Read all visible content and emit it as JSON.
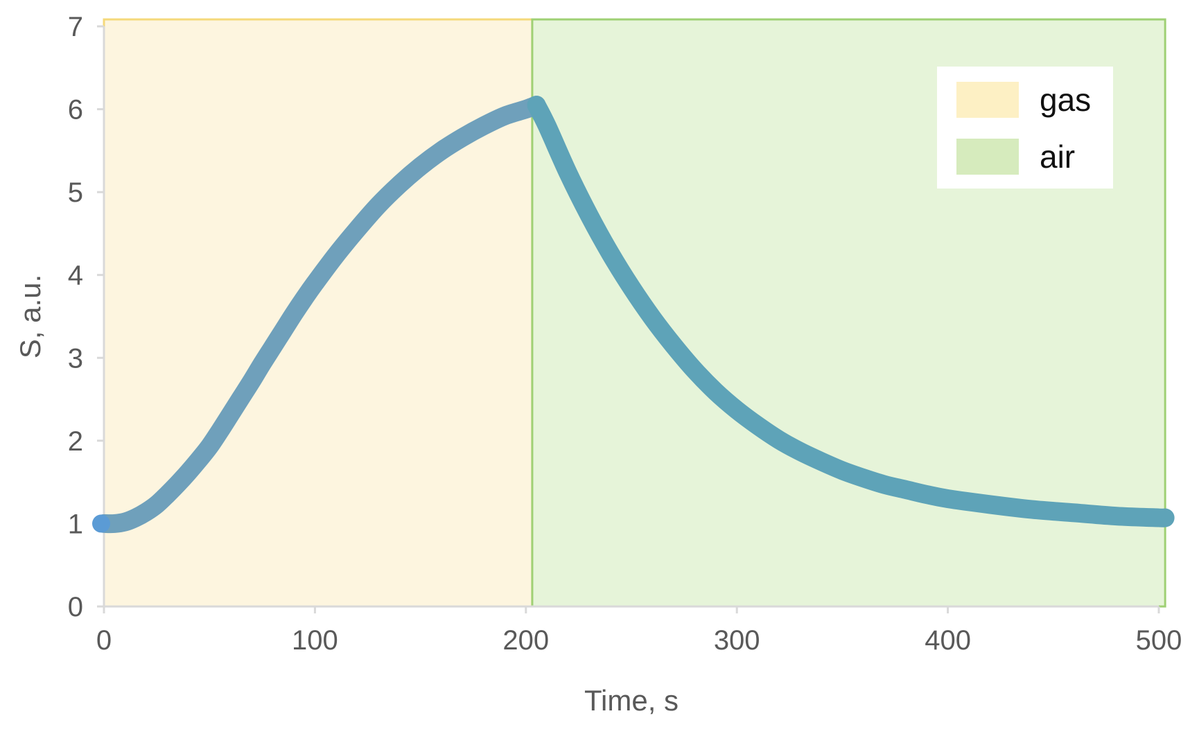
{
  "chart_data": {
    "type": "line",
    "title": "",
    "xlabel": "Time, s",
    "ylabel": "S, a.u.",
    "xlim": [
      0,
      500
    ],
    "ylim": [
      0,
      7
    ],
    "x_ticks": [
      0,
      100,
      200,
      300,
      400,
      500
    ],
    "y_ticks": [
      0,
      1,
      2,
      3,
      4,
      5,
      6,
      7
    ],
    "x_tick_labels": [
      "0",
      "100",
      "200",
      "300",
      "400",
      "500"
    ],
    "y_tick_labels": [
      "0",
      "1",
      "2",
      "3",
      "4",
      "5",
      "6",
      "7"
    ],
    "grid": false,
    "legend": {
      "position": "top-right",
      "entries": [
        {
          "label": "gas",
          "color": "#fdf0c4"
        },
        {
          "label": "air",
          "color": "#d6ebbd"
        }
      ]
    },
    "regions": [
      {
        "label": "gas",
        "x_start": 0,
        "x_end": 203,
        "fill": "#fdf5df",
        "border": "#f5d97a"
      },
      {
        "label": "air",
        "x_start": 203,
        "x_end": 503,
        "fill": "#e6f4d9",
        "border": "#9fd074"
      }
    ],
    "series": [
      {
        "color": "#6fa0bb",
        "points": [
          [
            0,
            1.0
          ],
          [
            5,
            1.0
          ],
          [
            10,
            1.02
          ],
          [
            15,
            1.07
          ],
          [
            20,
            1.14
          ],
          [
            25,
            1.23
          ],
          [
            30,
            1.35
          ],
          [
            35,
            1.48
          ],
          [
            40,
            1.62
          ],
          [
            45,
            1.77
          ],
          [
            50,
            1.93
          ],
          [
            55,
            2.12
          ],
          [
            60,
            2.32
          ],
          [
            65,
            2.52
          ],
          [
            70,
            2.72
          ],
          [
            75,
            2.93
          ],
          [
            80,
            3.13
          ],
          [
            85,
            3.33
          ],
          [
            90,
            3.53
          ],
          [
            95,
            3.72
          ],
          [
            100,
            3.9
          ],
          [
            110,
            4.24
          ],
          [
            120,
            4.55
          ],
          [
            130,
            4.84
          ],
          [
            140,
            5.09
          ],
          [
            150,
            5.31
          ],
          [
            160,
            5.5
          ],
          [
            170,
            5.66
          ],
          [
            180,
            5.8
          ],
          [
            190,
            5.92
          ],
          [
            200,
            6.0
          ],
          [
            205,
            6.05
          ]
        ]
      },
      {
        "color": "#5ea3b8",
        "points": [
          [
            205,
            6.05
          ],
          [
            210,
            5.8
          ],
          [
            220,
            5.23
          ],
          [
            230,
            4.72
          ],
          [
            240,
            4.26
          ],
          [
            250,
            3.85
          ],
          [
            260,
            3.48
          ],
          [
            270,
            3.15
          ],
          [
            280,
            2.85
          ],
          [
            290,
            2.59
          ],
          [
            300,
            2.37
          ],
          [
            310,
            2.18
          ],
          [
            320,
            2.01
          ],
          [
            330,
            1.87
          ],
          [
            340,
            1.75
          ],
          [
            350,
            1.64
          ],
          [
            360,
            1.55
          ],
          [
            370,
            1.47
          ],
          [
            380,
            1.41
          ],
          [
            390,
            1.35
          ],
          [
            400,
            1.3
          ],
          [
            420,
            1.23
          ],
          [
            440,
            1.17
          ],
          [
            460,
            1.13
          ],
          [
            480,
            1.09
          ],
          [
            500,
            1.07
          ],
          [
            503,
            1.07
          ]
        ]
      }
    ]
  }
}
